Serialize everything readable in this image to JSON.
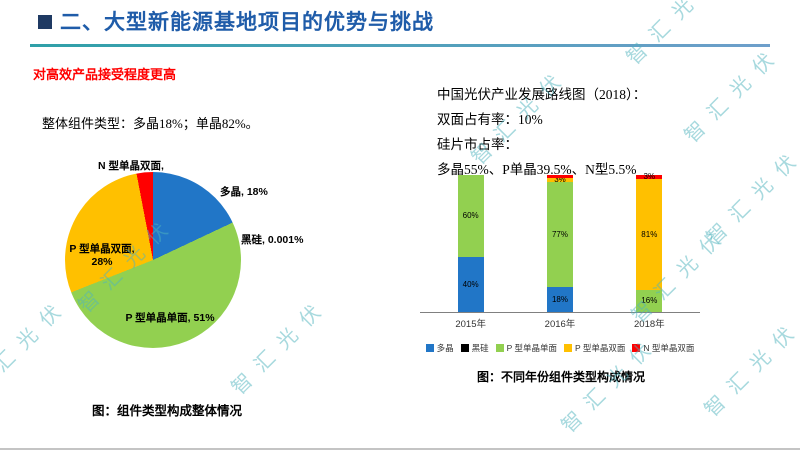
{
  "slide": {
    "title": "二、大型新能源基地项目的优势与挑战",
    "subtitle": "对高效产品接受程度更高",
    "watermark": "智汇光伏"
  },
  "left_panel": {
    "intro": "整体组件类型：多晶18%；单晶82%。",
    "caption": "图：组件类型构成整体情况"
  },
  "right_panel": {
    "line1": "中国光伏产业发展路线图（2018）：",
    "line2": "双面占有率：10%",
    "line3": "硅片市占率：",
    "line4": "多晶55%、P单晶39.5%、N型5.5%",
    "caption": "图：不同年份组件类型构成情况"
  },
  "chart_data": [
    {
      "type": "pie",
      "title": "组件类型构成整体情况",
      "labels": [
        "多晶",
        "黑硅",
        "P型单晶单面",
        "P型单晶双面",
        "N型单晶双面"
      ],
      "values": [
        18,
        0.001,
        51,
        28,
        3
      ],
      "colors": [
        "#2176C7",
        "#000000",
        "#92D050",
        "#FFC000",
        "#FF0000"
      ],
      "slice_labels": [
        "多晶, 18%",
        "黑硅, 0.001%",
        "P 型单晶单面, 51%",
        "P 型单晶双面, 28%",
        "N 型单晶双面,"
      ]
    },
    {
      "type": "bar",
      "stacked": true,
      "title": "不同年份组件类型构成情况",
      "categories": [
        "2015年",
        "2016年",
        "2018年"
      ],
      "ylim": [
        0,
        100
      ],
      "legend_position": "bottom",
      "series": [
        {
          "name": "多晶",
          "color": "#2176C7",
          "values": [
            40,
            18,
            0
          ],
          "labels": [
            "40%",
            "18%",
            ""
          ]
        },
        {
          "name": "黑硅",
          "color": "#000000",
          "values": [
            0,
            0,
            0
          ],
          "labels": [
            "",
            "",
            ""
          ]
        },
        {
          "name": "P 型单晶单面",
          "color": "#92D050",
          "values": [
            60,
            77,
            16
          ],
          "labels": [
            "60%",
            "77%",
            "16%"
          ]
        },
        {
          "name": "P 型单晶双面",
          "color": "#FFC000",
          "values": [
            0,
            3,
            81
          ],
          "labels": [
            "",
            "3%",
            "81%"
          ]
        },
        {
          "name": "N 型单晶双面",
          "color": "#FF0000",
          "values": [
            0,
            2,
            3
          ],
          "labels": [
            "",
            "",
            "3%"
          ]
        }
      ]
    }
  ]
}
